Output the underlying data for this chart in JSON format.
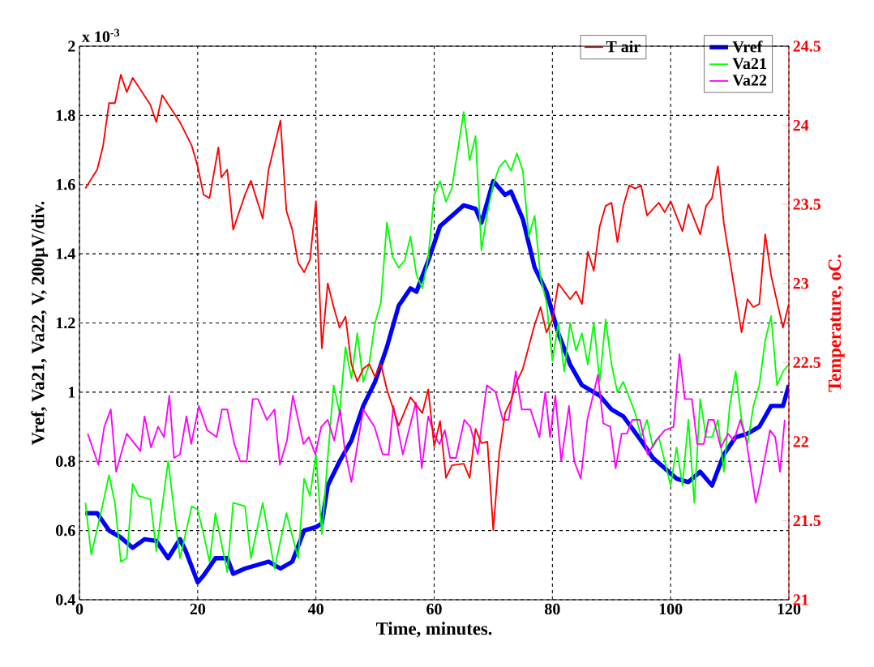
{
  "chart_data": {
    "type": "line",
    "xlabel": "Time, minutes.",
    "ylabel": "Vref, Va21, Va22, V, 200µV/div.",
    "y2label": "Temperature, oC.",
    "annotations": [
      "x 10$^{-3}$"
    ],
    "xlim": [
      0,
      120
    ],
    "xticks": [
      0,
      20,
      40,
      60,
      80,
      100,
      120
    ],
    "ylim": [
      0.4,
      2
    ],
    "yticks": [
      0.4,
      0.6,
      0.8,
      1,
      1.2,
      1.4,
      1.6,
      1.8,
      2
    ],
    "y2lim": [
      21,
      24.5
    ],
    "y2ticks": [
      21,
      21.5,
      22,
      22.5,
      23,
      23.5,
      24,
      24.5
    ],
    "grid": true,
    "legend": "top right",
    "marker": "none",
    "line_style": "solid",
    "series": [
      {
        "name": "T air",
        "color": "#ff0000",
        "axis": "y2",
        "x": [
          1,
          3,
          4,
          5,
          6,
          7,
          8,
          9,
          12,
          13,
          14,
          17,
          19,
          20,
          21,
          22,
          23.5,
          24,
          25,
          26,
          28,
          29,
          31,
          32,
          34,
          35,
          36,
          37,
          38,
          39,
          40,
          41,
          42,
          43,
          44,
          45,
          46,
          47,
          48,
          49,
          50,
          51,
          52,
          54,
          56,
          58,
          59,
          60,
          61,
          62,
          63,
          65,
          66,
          67,
          68,
          69,
          70,
          71,
          72,
          73,
          74,
          75,
          77,
          78,
          79,
          80,
          81,
          83,
          84,
          85,
          86,
          87,
          88,
          89,
          90,
          91,
          92,
          93,
          94,
          95,
          96,
          98,
          99,
          100,
          102,
          103,
          105,
          106,
          107,
          108,
          109,
          111,
          112,
          113,
          114,
          115,
          116,
          117,
          119,
          120
        ],
        "values": [
          23.6,
          23.72,
          23.87,
          24.14,
          24.14,
          24.32,
          24.21,
          24.3,
          24.13,
          24.02,
          24.19,
          24.02,
          23.87,
          23.74,
          23.56,
          23.54,
          23.86,
          23.67,
          23.72,
          23.34,
          23.56,
          23.65,
          23.41,
          23.72,
          24.03,
          23.46,
          23.34,
          23.13,
          23.07,
          23.15,
          23.52,
          22.59,
          23.0,
          22.85,
          22.72,
          22.79,
          22.49,
          22.38,
          22.46,
          22.49,
          22.41,
          22.49,
          22.33,
          22.1,
          22.28,
          22.18,
          22.33,
          21.97,
          22.13,
          21.77,
          21.85,
          21.86,
          21.77,
          22.08,
          21.99,
          22.0,
          21.44,
          21.92,
          22.18,
          22.26,
          22.38,
          22.46,
          22.74,
          22.85,
          22.69,
          22.77,
          23.0,
          22.9,
          22.95,
          22.87,
          23.2,
          23.08,
          23.36,
          23.49,
          23.51,
          23.26,
          23.49,
          23.62,
          23.6,
          23.62,
          23.43,
          23.51,
          23.45,
          23.52,
          23.33,
          23.5,
          23.31,
          23.49,
          23.54,
          23.74,
          23.38,
          22.92,
          22.69,
          22.9,
          22.85,
          22.87,
          23.31,
          23.05,
          22.72,
          22.87
        ]
      },
      {
        "name": "Vref",
        "color": "#0000ff",
        "x": [
          1,
          3,
          5,
          7,
          9,
          11,
          13,
          15,
          17,
          18,
          20,
          21,
          23,
          25,
          26,
          28,
          30,
          32,
          34,
          36,
          38,
          40,
          41,
          42,
          44,
          46,
          48,
          50,
          52,
          54,
          56,
          57,
          59,
          61,
          63,
          65,
          67,
          68,
          70,
          72,
          73,
          75,
          77,
          79,
          81,
          83,
          85,
          88,
          90,
          92,
          95,
          97,
          99,
          101,
          103,
          105,
          107,
          109,
          111,
          113,
          115,
          117,
          119,
          120
        ],
        "values": [
          0.65,
          0.65,
          0.6,
          0.58,
          0.55,
          0.575,
          0.57,
          0.52,
          0.575,
          0.54,
          0.45,
          0.47,
          0.52,
          0.52,
          0.475,
          0.49,
          0.5,
          0.51,
          0.49,
          0.51,
          0.6,
          0.61,
          0.62,
          0.73,
          0.8,
          0.86,
          0.96,
          1.03,
          1.13,
          1.25,
          1.3,
          1.29,
          1.38,
          1.48,
          1.51,
          1.54,
          1.53,
          1.49,
          1.61,
          1.57,
          1.58,
          1.5,
          1.36,
          1.29,
          1.17,
          1.08,
          1.02,
          0.99,
          0.95,
          0.93,
          0.86,
          0.81,
          0.78,
          0.75,
          0.74,
          0.77,
          0.73,
          0.82,
          0.87,
          0.88,
          0.9,
          0.96,
          0.96,
          1.02
        ]
      },
      {
        "name": "Va21",
        "color": "#00ff00",
        "x": [
          1,
          2,
          4,
          5,
          6,
          7,
          8,
          9,
          10,
          12,
          13,
          15,
          17,
          19,
          20,
          21,
          22,
          23,
          25,
          26,
          28,
          29,
          31,
          33,
          35,
          37,
          38,
          39,
          40,
          41,
          42,
          43,
          44,
          45,
          46,
          47,
          48,
          49,
          50,
          51,
          52,
          53,
          54,
          55,
          56,
          57,
          58,
          59,
          60,
          61,
          62,
          63,
          64,
          65,
          66,
          67,
          68,
          69,
          70,
          71,
          72,
          73,
          74,
          75,
          76,
          77,
          78,
          79,
          80,
          81,
          82,
          83,
          84,
          85,
          86,
          87,
          88,
          89,
          90,
          91,
          92,
          94,
          95,
          96,
          97,
          98,
          100,
          101,
          102,
          103,
          104,
          105,
          106,
          107,
          108,
          109,
          110,
          111,
          112,
          113,
          114,
          115,
          116,
          117,
          118,
          119,
          120
        ],
        "values": [
          0.68,
          0.53,
          0.68,
          0.76,
          0.68,
          0.51,
          0.52,
          0.735,
          0.7,
          0.69,
          0.54,
          0.8,
          0.52,
          0.67,
          0.66,
          0.59,
          0.51,
          0.65,
          0.48,
          0.68,
          0.67,
          0.52,
          0.68,
          0.49,
          0.65,
          0.52,
          0.75,
          0.7,
          0.82,
          0.59,
          0.81,
          1.02,
          0.94,
          1.13,
          1.04,
          1.17,
          1.03,
          1.08,
          1.2,
          1.26,
          1.49,
          1.39,
          1.36,
          1.38,
          1.45,
          1.34,
          1.3,
          1.39,
          1.57,
          1.61,
          1.55,
          1.59,
          1.7,
          1.81,
          1.67,
          1.74,
          1.41,
          1.52,
          1.6,
          1.65,
          1.67,
          1.64,
          1.69,
          1.64,
          1.45,
          1.51,
          1.33,
          1.26,
          1.09,
          1.2,
          1.06,
          1.2,
          1.12,
          1.17,
          1.08,
          1.2,
          1.03,
          1.21,
          1.08,
          1.0,
          1.03,
          0.94,
          0.87,
          0.92,
          0.84,
          0.87,
          0.73,
          0.84,
          0.73,
          0.92,
          0.68,
          0.98,
          0.87,
          0.87,
          0.92,
          0.77,
          0.96,
          1.06,
          0.92,
          0.85,
          0.96,
          1.02,
          1.15,
          1.22,
          1.02,
          1.06,
          1.08
        ]
      },
      {
        "name": "Va22",
        "color": "#ff00ff",
        "x": [
          1.4,
          3.2,
          4.2,
          5.3,
          6.2,
          8,
          10.3,
          11,
          12.1,
          13.3,
          14.3,
          15.2,
          16,
          17,
          18.1,
          18.9,
          20.2,
          21.6,
          23.2,
          24.1,
          25,
          26.2,
          27.2,
          28.3,
          29.3,
          30.2,
          31.7,
          33,
          33.9,
          35.1,
          36.1,
          37.9,
          38.8,
          39.9,
          40.9,
          42,
          43.1,
          44.1,
          44.9,
          46,
          48,
          49.9,
          51.3,
          52.3,
          53.1,
          54.7,
          56.9,
          57.9,
          59,
          60.2,
          60.9,
          61.8,
          62.7,
          63.7,
          65.1,
          66.1,
          67.4,
          68.9,
          70.4,
          71.6,
          72.6,
          73.8,
          74.8,
          76.3,
          77.8,
          78.8,
          79.6,
          80.5,
          81.5,
          82.8,
          83.7,
          84.8,
          85.9,
          87.7,
          88.6,
          89.8,
          90.7,
          91.7,
          92.6,
          93.5,
          94.8,
          96.1,
          97.5,
          99,
          100.5,
          101.5,
          102.4,
          103.6,
          104.5,
          105.6,
          106.4,
          107.3,
          108.5,
          109.7,
          110.7,
          111.8,
          112.8,
          114.4,
          115.2,
          116.8,
          117.7,
          118.5,
          119.3
        ],
        "values": [
          0.88,
          0.79,
          0.9,
          0.95,
          0.77,
          0.88,
          0.83,
          0.93,
          0.84,
          0.9,
          0.87,
          0.99,
          0.81,
          0.82,
          0.93,
          0.85,
          0.96,
          0.89,
          0.87,
          0.95,
          0.95,
          0.85,
          0.8,
          0.8,
          0.98,
          0.98,
          0.92,
          0.95,
          0.79,
          0.86,
          0.99,
          0.85,
          0.87,
          0.82,
          0.9,
          0.92,
          0.86,
          0.95,
          0.83,
          0.74,
          0.95,
          0.9,
          0.82,
          0.82,
          0.96,
          0.82,
          0.97,
          0.78,
          0.93,
          0.87,
          0.85,
          0.89,
          0.81,
          0.81,
          0.92,
          0.9,
          0.82,
          1.02,
          1.0,
          0.92,
          0.92,
          1.06,
          0.95,
          0.95,
          0.87,
          1.0,
          0.87,
          0.99,
          0.8,
          0.96,
          0.8,
          0.75,
          0.92,
          1.05,
          0.91,
          0.9,
          0.78,
          0.88,
          0.88,
          0.92,
          0.92,
          0.82,
          0.86,
          0.89,
          0.9,
          1.11,
          0.98,
          0.98,
          0.85,
          0.85,
          0.92,
          0.92,
          0.84,
          0.88,
          0.86,
          0.92,
          0.86,
          0.68,
          0.74,
          0.89,
          0.87,
          0.77,
          0.92
        ]
      }
    ]
  }
}
